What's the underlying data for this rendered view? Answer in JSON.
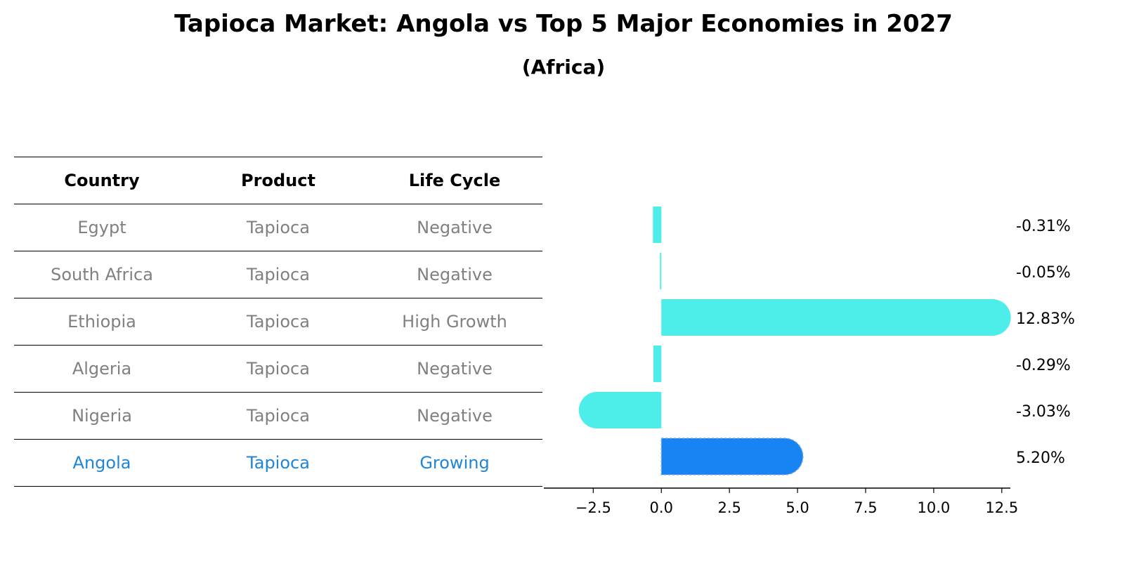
{
  "title": "Tapioca Market: Angola vs Top 5 Major Economies in 2027",
  "subtitle": "(Africa)",
  "table": {
    "headers": [
      "Country",
      "Product",
      "Life Cycle"
    ],
    "rows": [
      {
        "country": "Egypt",
        "product": "Tapioca",
        "life_cycle": "Negative"
      },
      {
        "country": "South Africa",
        "product": "Tapioca",
        "life_cycle": "Negative"
      },
      {
        "country": "Ethiopia",
        "product": "Tapioca",
        "life_cycle": "High Growth"
      },
      {
        "country": "Algeria",
        "product": "Tapioca",
        "life_cycle": "Negative"
      },
      {
        "country": "Nigeria",
        "product": "Tapioca",
        "life_cycle": "Negative"
      },
      {
        "country": "Angola",
        "product": "Tapioca",
        "life_cycle": "Growing"
      }
    ]
  },
  "colors": {
    "bar": "#4deee9",
    "highlight_bar": "#1883f3",
    "highlight_text": "#1f85d6",
    "muted_text": "#808080"
  },
  "chart_data": {
    "type": "bar",
    "orientation": "horizontal",
    "categories": [
      "Egypt",
      "South Africa",
      "Ethiopia",
      "Algeria",
      "Nigeria",
      "Angola"
    ],
    "values": [
      -0.31,
      -0.05,
      12.83,
      -0.29,
      -3.03,
      5.2
    ],
    "value_labels": [
      "-0.31%",
      "-0.05%",
      "12.83%",
      "-0.29%",
      "-3.03%",
      "5.20%"
    ],
    "highlight_index": 5,
    "xlim": [
      -3.85,
      13.64
    ],
    "xticks": [
      -2.5,
      0.0,
      2.5,
      5.0,
      7.5,
      10.0,
      12.5
    ],
    "xtick_labels": [
      "−2.5",
      "0.0",
      "2.5",
      "5.0",
      "7.5",
      "10.0",
      "12.5"
    ],
    "xlabel": "",
    "ylabel": "",
    "grid": false
  }
}
